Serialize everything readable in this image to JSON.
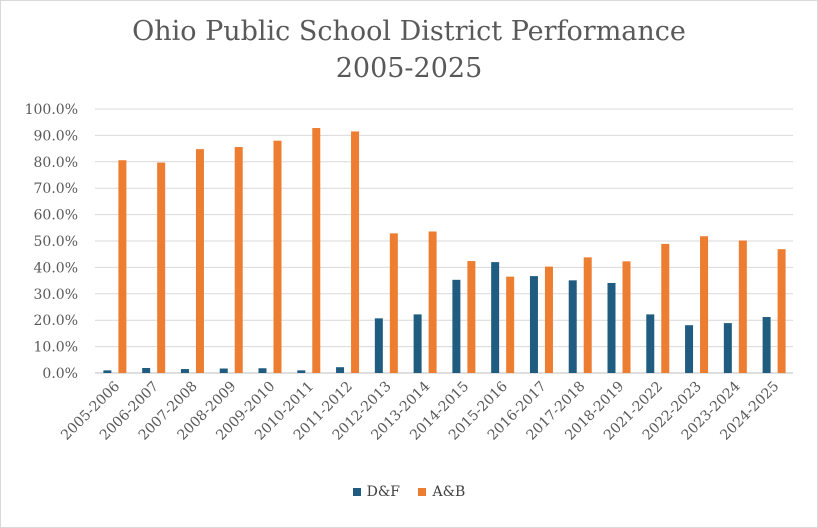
{
  "chart_data": {
    "type": "bar",
    "title": [
      "Ohio Public School District Performance",
      "2005-2025"
    ],
    "xlabel": "",
    "ylabel": "",
    "ylim": [
      0,
      100
    ],
    "ytick_step": 10,
    "ytick_labels": [
      "0.0%",
      "10.0%",
      "20.0%",
      "30.0%",
      "40.0%",
      "50.0%",
      "60.0%",
      "70.0%",
      "80.0%",
      "90.0%",
      "100.0%"
    ],
    "grid": true,
    "legend_position": "bottom",
    "categories": [
      "2005-2006",
      "2006-2007",
      "2007-2008",
      "2008-2009",
      "2009-2010",
      "2010-2011",
      "2011-2012",
      "2012-2013",
      "2013-2014",
      "2014-2015",
      "2015-2016",
      "2016-2017",
      "2017-2018",
      "2018-2019",
      "2021-2022",
      "2022-2023",
      "2023-2024",
      "2024-2025"
    ],
    "series": [
      {
        "name": "D&F",
        "color": "#1f5c80",
        "values": [
          1.0,
          1.9,
          1.5,
          1.7,
          1.8,
          1.0,
          2.2,
          20.7,
          22.2,
          35.3,
          42.0,
          36.7,
          35.1,
          34.1,
          22.2,
          18.1,
          18.9,
          21.2
        ]
      },
      {
        "name": "A&B",
        "color": "#ed7d31",
        "values": [
          80.6,
          79.7,
          84.8,
          85.6,
          88.0,
          92.8,
          91.5,
          52.9,
          53.6,
          42.4,
          36.5,
          40.3,
          43.8,
          42.3,
          48.9,
          51.8,
          50.2,
          46.9
        ]
      }
    ]
  }
}
